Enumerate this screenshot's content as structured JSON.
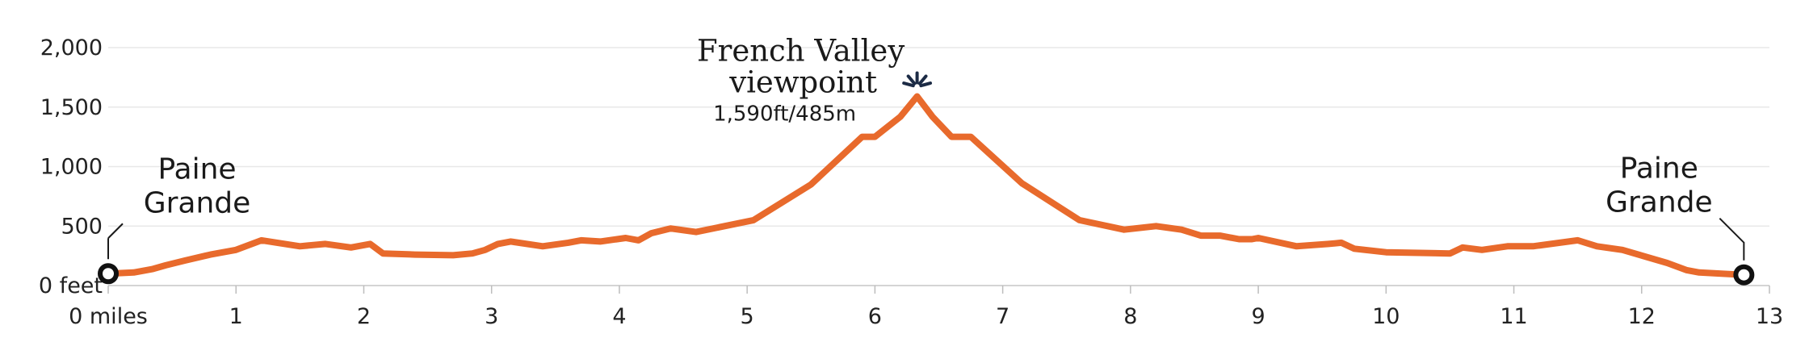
{
  "chart_data": {
    "type": "line",
    "title": "",
    "xlabel": "",
    "ylabel": "",
    "xlim": [
      0,
      13
    ],
    "ylim": [
      0,
      2000
    ],
    "x_ticks": [
      {
        "value": 0,
        "label": "0 miles"
      },
      {
        "value": 1,
        "label": "1"
      },
      {
        "value": 2,
        "label": "2"
      },
      {
        "value": 3,
        "label": "3"
      },
      {
        "value": 4,
        "label": "4"
      },
      {
        "value": 5,
        "label": "5"
      },
      {
        "value": 6,
        "label": "6"
      },
      {
        "value": 7,
        "label": "7"
      },
      {
        "value": 8,
        "label": "8"
      },
      {
        "value": 9,
        "label": "9"
      },
      {
        "value": 10,
        "label": "10"
      },
      {
        "value": 11,
        "label": "11"
      },
      {
        "value": 12,
        "label": "12"
      },
      {
        "value": 13,
        "label": "13"
      }
    ],
    "y_ticks": [
      {
        "value": 0,
        "label": "0 feet"
      },
      {
        "value": 500,
        "label": "500"
      },
      {
        "value": 1000,
        "label": "1,000"
      },
      {
        "value": 1500,
        "label": "1,500"
      },
      {
        "value": 2000,
        "label": "2,000"
      }
    ],
    "grid": true,
    "line_color": "#e86a2c",
    "accent_color": "#1c2b45",
    "series": [
      {
        "x": [
          0,
          0.2,
          0.35,
          0.45,
          0.6,
          0.8,
          1.0,
          1.2,
          1.5,
          1.7,
          1.9,
          2.05,
          2.15,
          2.4,
          2.7,
          2.85,
          2.95,
          3.05,
          3.15,
          3.4,
          3.6,
          3.7,
          3.85,
          4.05,
          4.15,
          4.25,
          4.4,
          4.6,
          5.05,
          5.5,
          5.9,
          6.0,
          6.2,
          6.33,
          6.45,
          6.6,
          6.75,
          7.15,
          7.6,
          7.95,
          8.2,
          8.4,
          8.55,
          8.7,
          8.85,
          8.95,
          9.0,
          9.3,
          9.55,
          9.65,
          9.75,
          10.0,
          10.5,
          10.6,
          10.75,
          10.95,
          11.15,
          11.5,
          11.65,
          11.85,
          12.2,
          12.35,
          12.45,
          12.8
        ],
        "y": [
          100,
          110,
          140,
          170,
          210,
          260,
          300,
          380,
          330,
          350,
          320,
          350,
          270,
          260,
          255,
          270,
          300,
          350,
          370,
          330,
          360,
          380,
          370,
          400,
          380,
          440,
          480,
          450,
          550,
          850,
          1250,
          1250,
          1420,
          1590,
          1420,
          1250,
          1250,
          860,
          550,
          470,
          500,
          470,
          420,
          420,
          390,
          390,
          400,
          330,
          350,
          360,
          310,
          280,
          270,
          320,
          300,
          330,
          330,
          380,
          330,
          300,
          190,
          130,
          110,
          90
        ]
      }
    ],
    "annotations": {
      "peak": {
        "x": 6.33,
        "y": 1590,
        "title_line1": "French Valley",
        "title_line2": "viewpoint",
        "elevation": "1,590ft/485m"
      },
      "start": {
        "x": 0,
        "y": 100,
        "line1": "Paine",
        "line2": "Grande"
      },
      "end": {
        "x": 12.8,
        "y": 90,
        "line1": "Paine",
        "line2": "Grande"
      }
    }
  }
}
